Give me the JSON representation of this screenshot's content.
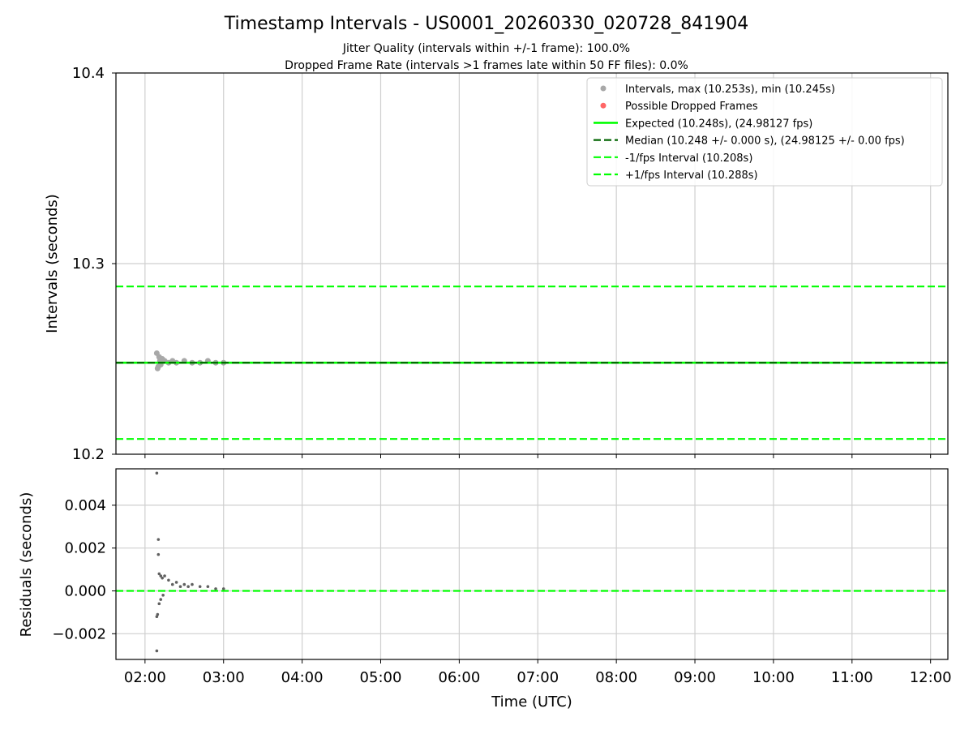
{
  "chart_data": [
    {
      "type": "scatter",
      "panel": "intervals",
      "title": "Timestamp Intervals - US0001_20260330_020728_841904",
      "subtitle_lines": [
        "Jitter Quality (intervals within +/-1 frame): 100.0%",
        "Dropped Frame Rate (intervals >1 frames late within 50 FF files): 0.0%"
      ],
      "xlabel": "",
      "ylabel": "Intervals (seconds)",
      "ylim": [
        10.2,
        10.4
      ],
      "yticks": [
        10.2,
        10.3,
        10.4
      ],
      "ytick_labels": [
        "10.2",
        "10.3",
        "10.4"
      ],
      "xlim_hours": [
        1.63,
        12.22
      ],
      "grid": true,
      "legend_position": "top-right",
      "series": [
        {
          "name": "Intervals, max (10.253s), min (10.245s)",
          "kind": "scatter",
          "color": "#a8a8a8",
          "points": [
            [
              2.15,
              10.253
            ],
            [
              2.16,
              10.245
            ],
            [
              2.17,
              10.246
            ],
            [
              2.18,
              10.251
            ],
            [
              2.19,
              10.249
            ],
            [
              2.2,
              10.247
            ],
            [
              2.22,
              10.25
            ],
            [
              2.25,
              10.249
            ],
            [
              2.3,
              10.248
            ],
            [
              2.35,
              10.249
            ],
            [
              2.4,
              10.248
            ],
            [
              2.5,
              10.249
            ],
            [
              2.6,
              10.248
            ],
            [
              2.7,
              10.248
            ],
            [
              2.8,
              10.249
            ],
            [
              2.9,
              10.248
            ],
            [
              3.0,
              10.248
            ]
          ]
        },
        {
          "name": "Possible Dropped Frames",
          "kind": "scatter",
          "color": "#ff6666",
          "points": []
        },
        {
          "name": "Expected (10.248s), (24.98127 fps)",
          "kind": "hline",
          "y": 10.248,
          "color": "#00ff00",
          "style": "solid"
        },
        {
          "name": "Median (10.248 +/- 0.000 s), (24.98125 +/- 0.00 fps)",
          "kind": "hline",
          "y": 10.248,
          "color": "#006400",
          "style": "dashed"
        },
        {
          "name": "-1/fps Interval (10.208s)",
          "kind": "hline",
          "y": 10.208,
          "color": "#00ff00",
          "style": "dashed"
        },
        {
          "name": "+1/fps Interval (10.288s)",
          "kind": "hline",
          "y": 10.288,
          "color": "#00ff00",
          "style": "dashed"
        }
      ]
    },
    {
      "type": "scatter",
      "panel": "residuals",
      "xlabel": "Time (UTC)",
      "ylabel": "Residuals (seconds)",
      "ylim": [
        -0.0032,
        0.0057
      ],
      "yticks": [
        -0.002,
        0.0,
        0.002,
        0.004
      ],
      "ytick_labels": [
        "−0.002",
        "0.000",
        "0.002",
        "0.004"
      ],
      "xlim_hours": [
        1.63,
        12.22
      ],
      "xticks": [
        2,
        3,
        4,
        5,
        6,
        7,
        8,
        9,
        10,
        11,
        12
      ],
      "xtick_labels": [
        "02:00",
        "03:00",
        "04:00",
        "05:00",
        "06:00",
        "07:00",
        "08:00",
        "09:00",
        "10:00",
        "11:00",
        "12:00"
      ],
      "grid": true,
      "series": [
        {
          "name": "Residuals",
          "kind": "scatter",
          "color": "#606060",
          "points": [
            [
              2.15,
              0.0055
            ],
            [
              2.17,
              0.0024
            ],
            [
              2.17,
              0.0017
            ],
            [
              2.18,
              0.0008
            ],
            [
              2.15,
              -0.0028
            ],
            [
              2.15,
              -0.0012
            ],
            [
              2.16,
              -0.0011
            ],
            [
              2.2,
              0.0007
            ],
            [
              2.22,
              0.0006
            ],
            [
              2.25,
              0.0007
            ],
            [
              2.18,
              -0.0006
            ],
            [
              2.2,
              -0.0004
            ],
            [
              2.23,
              -0.0002
            ],
            [
              2.3,
              0.0005
            ],
            [
              2.35,
              0.0003
            ],
            [
              2.4,
              0.0004
            ],
            [
              2.45,
              0.0002
            ],
            [
              2.5,
              0.0003
            ],
            [
              2.55,
              0.0002
            ],
            [
              2.6,
              0.0003
            ],
            [
              2.7,
              0.0002
            ],
            [
              2.8,
              0.0002
            ],
            [
              2.9,
              0.0001
            ],
            [
              3.0,
              0.0001
            ]
          ]
        },
        {
          "name": "Zero line",
          "kind": "hline",
          "y": 0.0,
          "color": "#00ff00",
          "style": "dashed"
        }
      ]
    }
  ]
}
